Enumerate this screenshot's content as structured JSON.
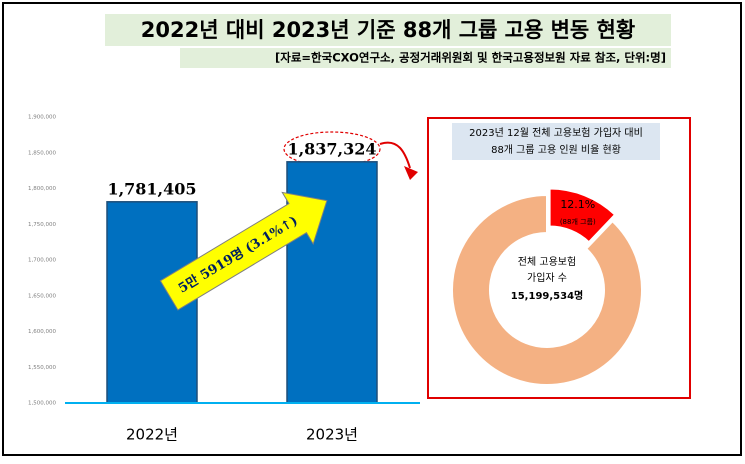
{
  "header": {
    "title": "2022년 대비 2023년 기준 88개 그룹 고용 변동 현황",
    "subtitle": "[자료=한국CXO연구소, 공정거래위원회 및 한국고용정보원 자료 참조, 단위:명]"
  },
  "chart_data": [
    {
      "type": "bar",
      "categories": [
        "2022년",
        "2023년"
      ],
      "values": [
        1781405,
        1837324
      ],
      "value_labels": [
        "1,781,405",
        "1,837,324"
      ],
      "color": "#0070c0",
      "ylim": [
        1500000,
        1900000
      ],
      "yticks": [
        {
          "value": 1500000,
          "label": "1,500,000"
        },
        {
          "value": 1550000,
          "label": "1,550,000"
        },
        {
          "value": 1600000,
          "label": "1,600,000"
        },
        {
          "value": 1650000,
          "label": "1,650,000"
        },
        {
          "value": 1700000,
          "label": "1,700,000"
        },
        {
          "value": 1750000,
          "label": "1,750,000"
        },
        {
          "value": 1800000,
          "label": "1,800,000"
        },
        {
          "value": 1850000,
          "label": "1,850,000"
        },
        {
          "value": 1900000,
          "label": "1,900,000"
        }
      ],
      "grid": false,
      "annotation": "5만 5919명 (3.1%↑)"
    },
    {
      "type": "pie",
      "title_lines": [
        "2023년 12월 전체 고용보험 가입자 대비",
        "88개 그룹 고용 인원 비율 현황"
      ],
      "values": [
        12.1,
        87.9
      ],
      "value_labels": [
        "12.1%",
        null
      ],
      "colors": [
        "#ff0000",
        "#f4b183"
      ],
      "slice_note": "(88개 그룹)",
      "center_label_lines": [
        "전체 고용보험",
        "가입자 수"
      ],
      "center_value": "15,199,534명"
    }
  ]
}
